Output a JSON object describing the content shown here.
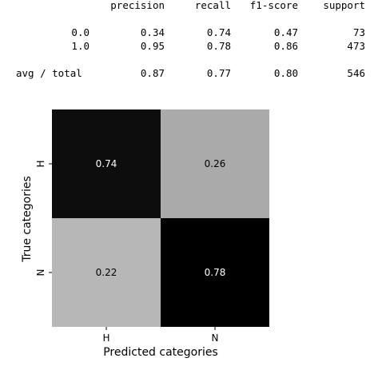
{
  "report": {
    "headers": [
      "precision",
      "recall",
      "f1-score",
      "support"
    ],
    "rows": [
      {
        "label": "0.0",
        "values": [
          "0.34",
          "0.74",
          "0.47",
          "73"
        ]
      },
      {
        "label": "1.0",
        "values": [
          "0.95",
          "0.78",
          "0.86",
          "473"
        ]
      }
    ],
    "total": {
      "label": "avg / total",
      "values": [
        "0.87",
        "0.77",
        "0.80",
        "546"
      ]
    }
  },
  "chart_data": {
    "type": "heatmap",
    "title": "",
    "xlabel": "Predicted categories",
    "ylabel": "True categories",
    "x_categories": [
      "H",
      "N"
    ],
    "y_categories": [
      "H",
      "N"
    ],
    "values": [
      [
        0.74,
        0.26
      ],
      [
        0.22,
        0.78
      ]
    ],
    "value_labels": [
      [
        "0.74",
        "0.26"
      ],
      [
        "0.22",
        "0.78"
      ]
    ],
    "colormap": "Greys",
    "vmin": 0,
    "vmax": 0.78,
    "grid": false
  }
}
